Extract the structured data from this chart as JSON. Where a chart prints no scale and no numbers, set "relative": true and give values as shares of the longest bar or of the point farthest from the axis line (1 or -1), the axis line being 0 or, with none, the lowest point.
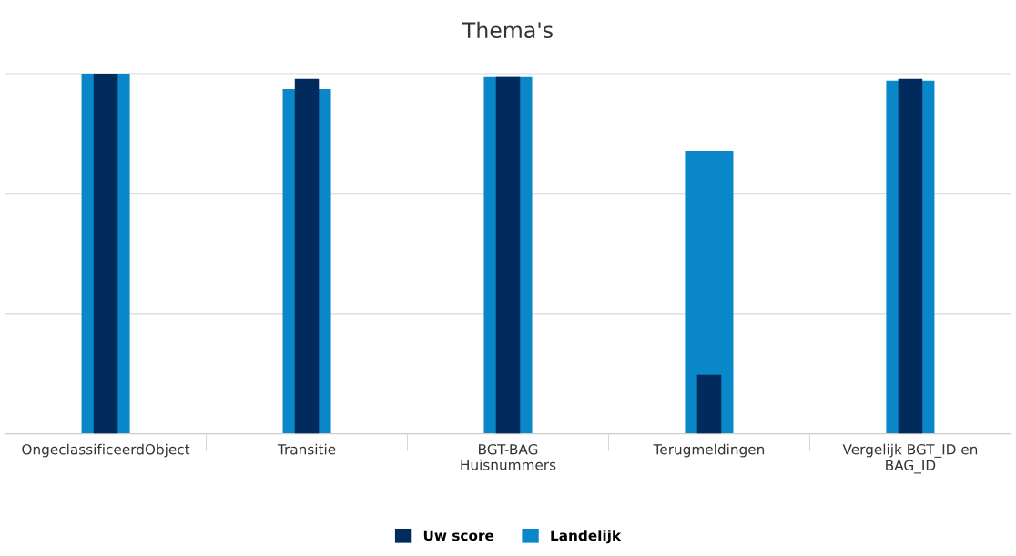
{
  "chart_data": {
    "type": "bar",
    "title": "Thema's",
    "relative": true,
    "legend": "bottom",
    "ref_lines": [
      {
        "axis": "y",
        "value": 0.333,
        "color": "#e0e0e0"
      },
      {
        "axis": "y",
        "value": 0.667,
        "color": "#e0e0e0"
      },
      {
        "axis": "y",
        "value": 1.0,
        "color": "#e0e0e0"
      }
    ],
    "categories": [
      "OngeclassificeerdObject",
      "Transitie",
      "BGT-BAG\nHuisnummers",
      "Terugmeldingen",
      "Vergelijk BGT_ID en\nBAG_ID"
    ],
    "series": [
      {
        "name": "Uw score",
        "color": "#002b5c",
        "values": [
          1.0,
          0.985,
          0.99,
          0.164,
          0.985
        ]
      },
      {
        "name": "Landelijk",
        "color": "#0a87c8",
        "values": [
          1.0,
          0.957,
          0.99,
          0.785,
          0.98
        ]
      }
    ]
  }
}
